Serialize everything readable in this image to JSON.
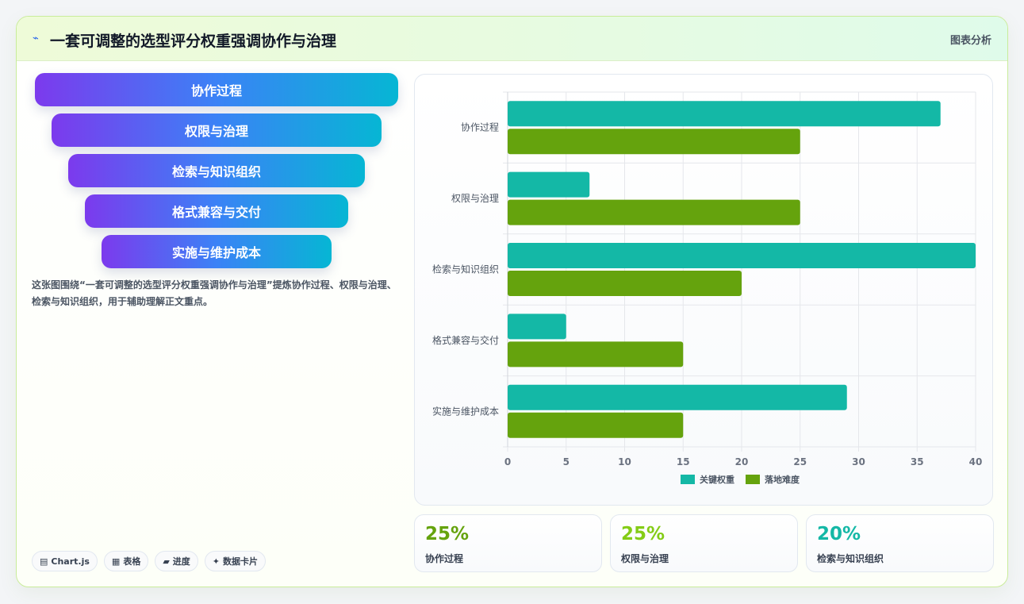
{
  "header": {
    "title": "一套可调整的选型评分权重强调协作与治理",
    "tag": "图表分析",
    "icon": "bolt-icon"
  },
  "funnel": [
    {
      "label": "协作过程"
    },
    {
      "label": "权限与治理"
    },
    {
      "label": "检索与知识组织"
    },
    {
      "label": "格式兼容与交付"
    },
    {
      "label": "实施与维护成本"
    }
  ],
  "description": "这张图围绕“一套可调整的选型评分权重强调协作与治理”提炼协作过程、权限与治理、检索与知识组织，用于辅助理解正文重点。",
  "badges": [
    {
      "icon": "chart-icon",
      "glyph": "▤",
      "label": "Chart.js"
    },
    {
      "icon": "table-icon",
      "glyph": "▦",
      "label": "表格"
    },
    {
      "icon": "progress-icon",
      "glyph": "▰",
      "label": "进度"
    },
    {
      "icon": "data-card-icon",
      "glyph": "✦",
      "label": "数据卡片"
    }
  ],
  "stats": [
    {
      "value": "25%",
      "label": "协作过程",
      "color": "#65a30d"
    },
    {
      "value": "25%",
      "label": "权限与治理",
      "color": "#84cc16"
    },
    {
      "value": "20%",
      "label": "检索与知识组织",
      "color": "#14b8a6"
    }
  ],
  "chart_data": {
    "type": "bar",
    "orientation": "horizontal",
    "categories": [
      "协作过程",
      "权限与治理",
      "检索与知识组织",
      "格式兼容与交付",
      "实施与维护成本"
    ],
    "series": [
      {
        "name": "关键权重",
        "values": [
          37,
          7,
          40,
          5,
          29
        ],
        "color": "#14b8a6"
      },
      {
        "name": "落地难度",
        "values": [
          25,
          25,
          20,
          15,
          15
        ],
        "color": "#65a30d"
      }
    ],
    "xlim": [
      0,
      40
    ],
    "xticks": [
      0,
      5,
      10,
      15,
      20,
      25,
      30,
      35,
      40
    ],
    "grid": true,
    "legend": "bottom"
  }
}
